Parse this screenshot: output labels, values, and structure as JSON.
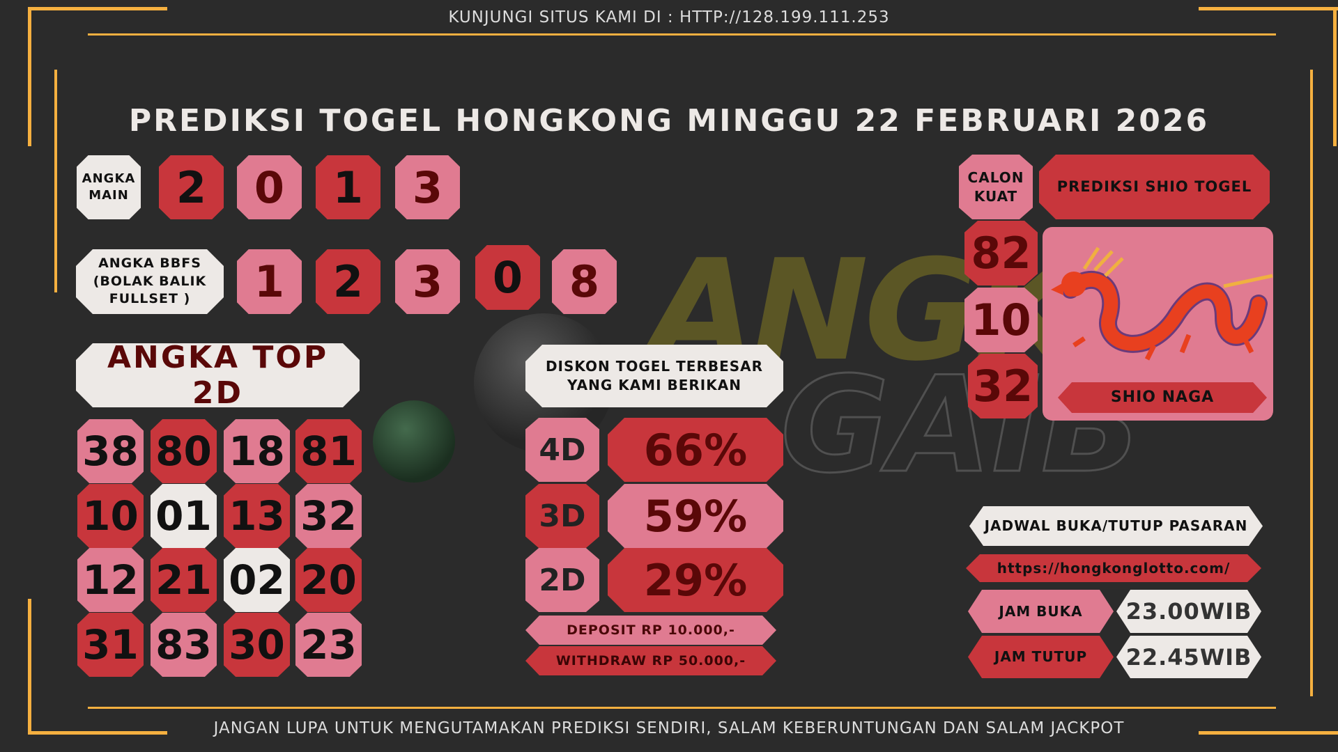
{
  "header": {
    "visit_text": "KUNJUNGI SITUS KAMI DI : HTTP://128.199.111.253"
  },
  "title": "PREDIKSI TOGEL HONGKONG MINGGU 22 FEBRUARI 2026",
  "angka_main": {
    "label_line1": "ANGKA",
    "label_line2": "MAIN",
    "digits": [
      "2",
      "0",
      "1",
      "3"
    ]
  },
  "bbfs": {
    "label_line1": "ANGKA BBFS",
    "label_line2": "(BOLAK BALIK",
    "label_line3": "FULLSET )",
    "digits": [
      "1",
      "2",
      "3",
      "0",
      "8"
    ]
  },
  "top2d": {
    "label": "ANGKA TOP 2D",
    "numbers": [
      "38",
      "80",
      "18",
      "81",
      "10",
      "01",
      "13",
      "32",
      "12",
      "21",
      "02",
      "20",
      "31",
      "83",
      "30",
      "23"
    ]
  },
  "diskon": {
    "label_line1": "DISKON TOGEL TERBESAR",
    "label_line2": "YANG KAMI BERIKAN",
    "rows": [
      {
        "type": "4D",
        "value": "66%"
      },
      {
        "type": "3D",
        "value": "59%"
      },
      {
        "type": "2D",
        "value": "29%"
      }
    ],
    "deposit": "DEPOSIT RP 10.000,-",
    "withdraw": "WITHDRAW RP 50.000,-"
  },
  "calon_kuat": {
    "label_line1": "CALON",
    "label_line2": "KUAT",
    "numbers": [
      "82",
      "10",
      "32"
    ]
  },
  "shio": {
    "header": "PREDIKSI SHIO TOGEL",
    "name": "SHIO NAGA",
    "icon": "dragon-icon"
  },
  "jadwal": {
    "label": "JADWAL BUKA/TUTUP PASARAN",
    "url": "https://hongkonglotto.com/",
    "buka_label": "JAM BUKA",
    "buka_value": "23.00WIB",
    "tutup_label": "JAM TUTUP",
    "tutup_value": "22.45WIB"
  },
  "footer": {
    "text": "JANGAN LUPA UNTUK MENGUTAMAKAN PREDIKSI SENDIRI, SALAM KEBERUNTUNGAN DAN SALAM JACKPOT"
  },
  "watermark": "ANGKA GAIB",
  "colors": {
    "red": "#c8363c",
    "pink": "#e07b91",
    "white": "#ede9e6",
    "accent": "#f5b040",
    "background": "#2b2b2b"
  }
}
